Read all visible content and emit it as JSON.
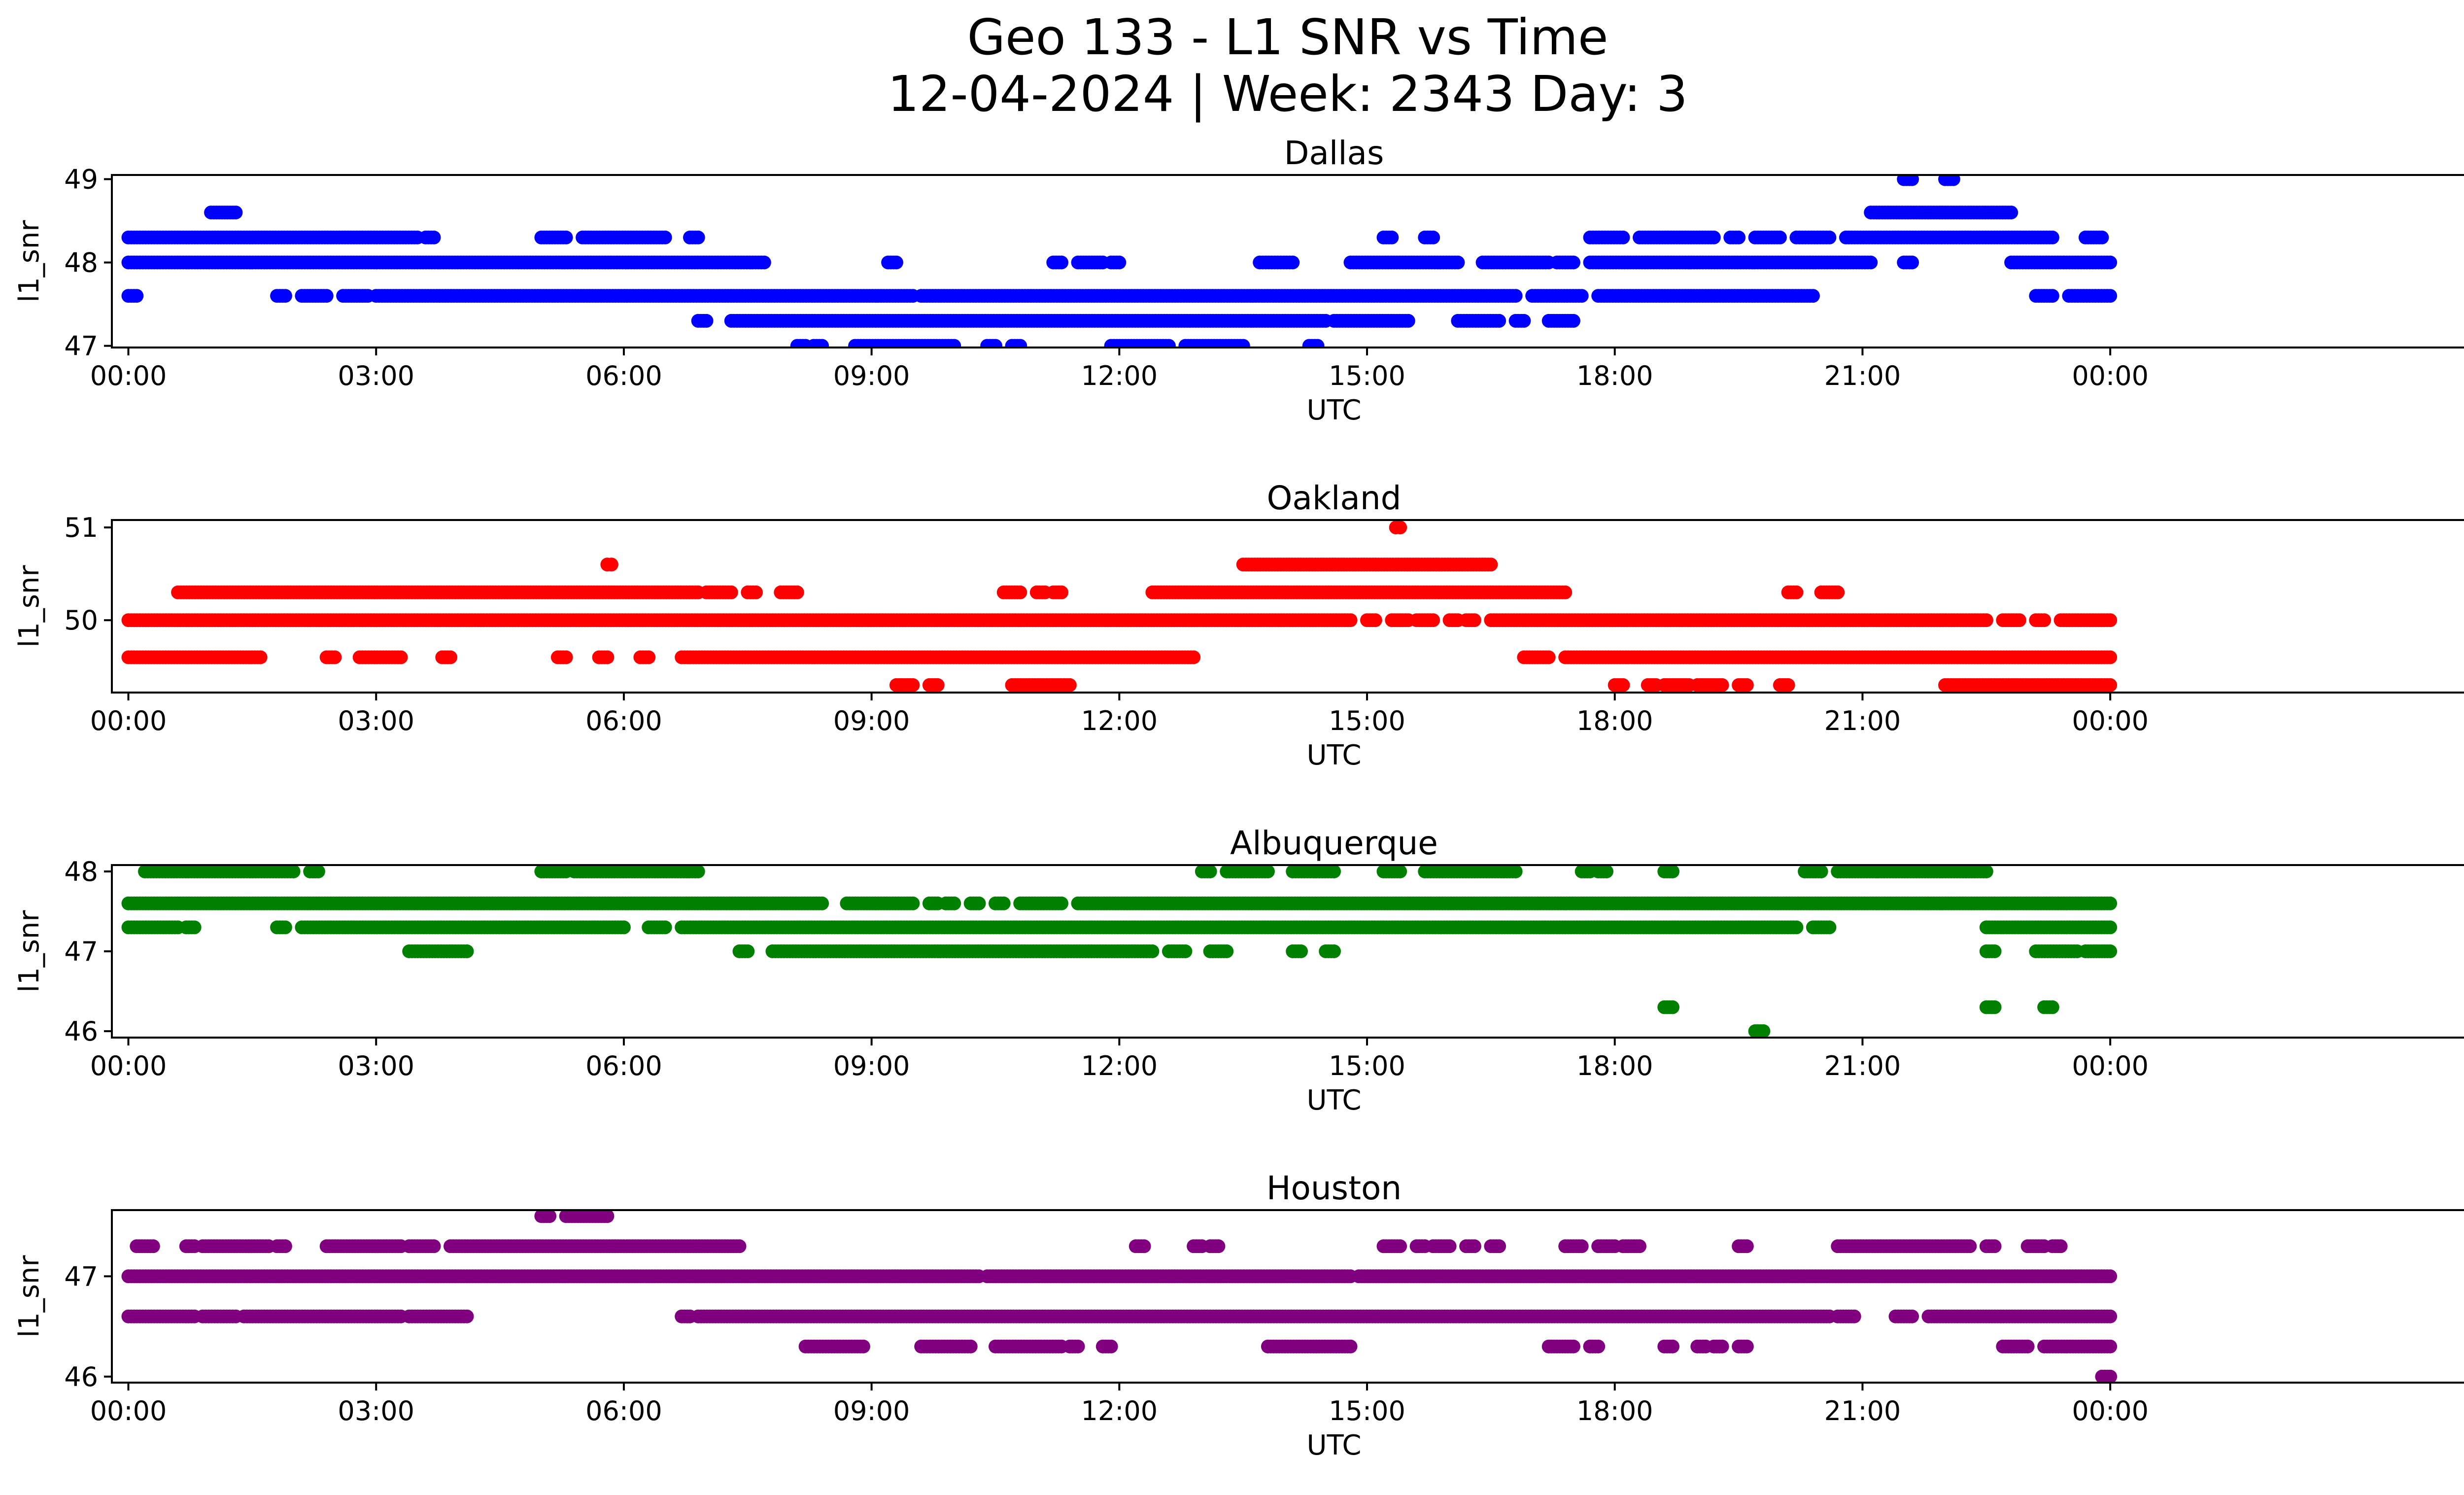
{
  "figure": {
    "title_line1": "Geo 133 - L1 SNR vs Time",
    "title_line2": "12-04-2024 | Week: 2343 Day: 3"
  },
  "chart_data": [
    {
      "type": "scatter",
      "title": "Dallas",
      "xlabel": "UTC",
      "ylabel": "l1_snr",
      "color": "#0000ff",
      "xlim": [
        -0.2,
        29.4
      ],
      "ylim": [
        46.98,
        49.05
      ],
      "xticks": [
        0,
        3,
        6,
        9,
        12,
        15,
        18,
        21,
        24
      ],
      "xtick_labels": [
        "00:00",
        "03:00",
        "06:00",
        "09:00",
        "12:00",
        "15:00",
        "18:00",
        "21:00",
        "00:00"
      ],
      "yticks": [
        47,
        48,
        49
      ],
      "ytick_labels": [
        "47",
        "48",
        "49"
      ],
      "levels": [
        {
          "y": 48.6,
          "ranges": [
            [
              1.0,
              1.3
            ]
          ]
        },
        {
          "y": 49.0,
          "ranges": [
            [
              21.5,
              21.6
            ],
            [
              22.0,
              22.1
            ]
          ]
        },
        {
          "y": 48.6,
          "ranges": [
            [
              21.1,
              22.8
            ]
          ]
        },
        {
          "y": 48.3,
          "ranges": [
            [
              0.0,
              3.5
            ],
            [
              3.6,
              3.7
            ],
            [
              5.0,
              5.3
            ],
            [
              5.5,
              6.5
            ],
            [
              6.8,
              6.9
            ],
            [
              15.2,
              15.3
            ],
            [
              15.7,
              15.8
            ],
            [
              17.7,
              18.1
            ],
            [
              18.3,
              19.2
            ],
            [
              19.4,
              19.5
            ],
            [
              19.7,
              20.0
            ],
            [
              20.2,
              20.6
            ],
            [
              20.8,
              23.3
            ],
            [
              23.7,
              23.9
            ]
          ]
        },
        {
          "y": 48.0,
          "ranges": [
            [
              0.0,
              7.7
            ],
            [
              9.2,
              9.3
            ],
            [
              11.2,
              11.3
            ],
            [
              11.5,
              11.8
            ],
            [
              11.9,
              12.0
            ],
            [
              13.7,
              14.1
            ],
            [
              14.8,
              16.1
            ],
            [
              16.4,
              17.2
            ],
            [
              17.3,
              17.5
            ],
            [
              17.7,
              21.1
            ],
            [
              21.5,
              21.6
            ],
            [
              22.8,
              24.0
            ]
          ]
        },
        {
          "y": 47.6,
          "ranges": [
            [
              0.0,
              0.1
            ],
            [
              1.8,
              1.9
            ],
            [
              2.1,
              2.4
            ],
            [
              2.6,
              2.9
            ],
            [
              3.0,
              9.5
            ],
            [
              9.6,
              16.8
            ],
            [
              17.0,
              17.6
            ],
            [
              17.8,
              20.4
            ],
            [
              23.1,
              23.3
            ],
            [
              23.5,
              24.0
            ]
          ]
        },
        {
          "y": 47.3,
          "ranges": [
            [
              6.9,
              7.0
            ],
            [
              7.3,
              14.5
            ],
            [
              14.6,
              15.5
            ],
            [
              16.1,
              16.6
            ],
            [
              16.8,
              16.9
            ],
            [
              17.2,
              17.5
            ]
          ]
        },
        {
          "y": 47.0,
          "ranges": [
            [
              8.1,
              8.2
            ],
            [
              8.3,
              8.4
            ],
            [
              8.8,
              10.0
            ],
            [
              10.4,
              10.5
            ],
            [
              10.7,
              10.8
            ],
            [
              11.9,
              12.6
            ],
            [
              12.8,
              13.5
            ],
            [
              14.3,
              14.4
            ]
          ]
        }
      ]
    },
    {
      "type": "scatter",
      "title": "Oakland",
      "xlabel": "UTC",
      "ylabel": "l1_snr",
      "color": "#ff0000",
      "xlim": [
        -0.2,
        29.4
      ],
      "ylim": [
        49.22,
        51.08
      ],
      "xticks": [
        0,
        3,
        6,
        9,
        12,
        15,
        18,
        21,
        24
      ],
      "xtick_labels": [
        "00:00",
        "03:00",
        "06:00",
        "09:00",
        "12:00",
        "15:00",
        "18:00",
        "21:00",
        "00:00"
      ],
      "yticks": [
        50,
        51
      ],
      "ytick_labels": [
        "50",
        "51"
      ],
      "levels": [
        {
          "y": 51.0,
          "ranges": [
            [
              15.35,
              15.4
            ]
          ]
        },
        {
          "y": 50.6,
          "ranges": [
            [
              5.8,
              5.85
            ],
            [
              13.5,
              16.5
            ]
          ]
        },
        {
          "y": 50.3,
          "ranges": [
            [
              0.6,
              6.9
            ],
            [
              7.0,
              7.3
            ],
            [
              7.5,
              7.6
            ],
            [
              7.9,
              8.1
            ],
            [
              10.6,
              10.8
            ],
            [
              11.0,
              11.1
            ],
            [
              11.2,
              11.3
            ],
            [
              12.4,
              17.4
            ],
            [
              20.1,
              20.2
            ],
            [
              20.5,
              20.7
            ]
          ]
        },
        {
          "y": 50.0,
          "ranges": [
            [
              0.0,
              14.8
            ],
            [
              15.0,
              15.1
            ],
            [
              15.3,
              15.5
            ],
            [
              15.6,
              15.8
            ],
            [
              16.0,
              16.1
            ],
            [
              16.2,
              16.3
            ],
            [
              16.5,
              22.5
            ],
            [
              22.7,
              22.9
            ],
            [
              23.1,
              23.2
            ],
            [
              23.4,
              24.0
            ]
          ]
        },
        {
          "y": 49.6,
          "ranges": [
            [
              0.0,
              1.6
            ],
            [
              2.4,
              2.5
            ],
            [
              2.8,
              3.3
            ],
            [
              3.8,
              3.9
            ],
            [
              5.2,
              5.3
            ],
            [
              5.7,
              5.8
            ],
            [
              6.2,
              6.3
            ],
            [
              6.7,
              12.9
            ],
            [
              16.9,
              17.2
            ],
            [
              17.4,
              24.0
            ]
          ]
        },
        {
          "y": 49.3,
          "ranges": [
            [
              9.3,
              9.5
            ],
            [
              9.7,
              9.8
            ],
            [
              10.7,
              11.4
            ],
            [
              18.0,
              18.1
            ],
            [
              18.4,
              18.5
            ],
            [
              18.6,
              18.9
            ],
            [
              19.0,
              19.3
            ],
            [
              19.5,
              19.6
            ],
            [
              20.0,
              20.1
            ],
            [
              22.0,
              24.0
            ]
          ]
        }
      ]
    },
    {
      "type": "scatter",
      "title": "Albuquerque",
      "xlabel": "UTC",
      "ylabel": "l1_snr",
      "color": "#008000",
      "xlim": [
        -0.2,
        29.4
      ],
      "ylim": [
        45.92,
        48.08
      ],
      "xticks": [
        0,
        3,
        6,
        9,
        12,
        15,
        18,
        21,
        24
      ],
      "xtick_labels": [
        "00:00",
        "03:00",
        "06:00",
        "09:00",
        "12:00",
        "15:00",
        "18:00",
        "21:00",
        "00:00"
      ],
      "yticks": [
        46,
        47,
        48
      ],
      "ytick_labels": [
        "46",
        "47",
        "48"
      ],
      "levels": [
        {
          "y": 48.0,
          "ranges": [
            [
              0.2,
              2.0
            ],
            [
              2.2,
              2.3
            ],
            [
              5.0,
              5.3
            ],
            [
              5.4,
              6.9
            ],
            [
              13.0,
              13.1
            ],
            [
              13.3,
              13.8
            ],
            [
              14.1,
              14.6
            ],
            [
              15.2,
              15.4
            ],
            [
              15.7,
              16.8
            ],
            [
              17.6,
              17.7
            ],
            [
              17.8,
              17.9
            ],
            [
              18.6,
              18.7
            ],
            [
              20.3,
              20.5
            ],
            [
              20.7,
              22.5
            ]
          ]
        },
        {
          "y": 47.6,
          "ranges": [
            [
              0.0,
              8.4
            ],
            [
              8.7,
              9.5
            ],
            [
              9.7,
              9.8
            ],
            [
              9.9,
              10.0
            ],
            [
              10.2,
              10.3
            ],
            [
              10.5,
              10.6
            ],
            [
              10.8,
              11.3
            ],
            [
              11.5,
              24.0
            ]
          ]
        },
        {
          "y": 47.3,
          "ranges": [
            [
              0.0,
              0.6
            ],
            [
              0.7,
              0.8
            ],
            [
              1.8,
              1.9
            ],
            [
              2.1,
              6.0
            ],
            [
              6.3,
              6.5
            ],
            [
              6.7,
              20.2
            ],
            [
              20.4,
              20.6
            ],
            [
              22.5,
              24.0
            ]
          ]
        },
        {
          "y": 47.0,
          "ranges": [
            [
              3.4,
              4.1
            ],
            [
              7.4,
              7.5
            ],
            [
              7.8,
              12.4
            ],
            [
              12.6,
              12.8
            ],
            [
              13.1,
              13.3
            ],
            [
              14.1,
              14.2
            ],
            [
              14.5,
              14.6
            ],
            [
              22.5,
              22.6
            ],
            [
              23.1,
              23.6
            ],
            [
              23.7,
              24.0
            ]
          ]
        },
        {
          "y": 46.3,
          "ranges": [
            [
              18.6,
              18.7
            ],
            [
              22.5,
              22.6
            ],
            [
              23.2,
              23.3
            ]
          ]
        },
        {
          "y": 46.0,
          "ranges": [
            [
              19.7,
              19.8
            ]
          ]
        }
      ]
    },
    {
      "type": "scatter",
      "title": "Houston",
      "xlabel": "UTC",
      "ylabel": "l1_snr",
      "color": "#800080",
      "xlim": [
        -0.2,
        29.4
      ],
      "ylim": [
        45.94,
        47.66
      ],
      "xticks": [
        0,
        3,
        6,
        9,
        12,
        15,
        18,
        21,
        24
      ],
      "xtick_labels": [
        "00:00",
        "03:00",
        "06:00",
        "09:00",
        "12:00",
        "15:00",
        "18:00",
        "21:00",
        "00:00"
      ],
      "yticks": [
        46,
        47
      ],
      "ytick_labels": [
        "46",
        "47"
      ],
      "levels": [
        {
          "y": 47.6,
          "ranges": [
            [
              5.0,
              5.1
            ],
            [
              5.3,
              5.8
            ]
          ]
        },
        {
          "y": 47.3,
          "ranges": [
            [
              0.1,
              0.3
            ],
            [
              0.7,
              0.8
            ],
            [
              0.9,
              1.7
            ],
            [
              1.8,
              1.9
            ],
            [
              2.4,
              3.3
            ],
            [
              3.4,
              3.7
            ],
            [
              3.9,
              7.4
            ],
            [
              12.2,
              12.3
            ],
            [
              12.9,
              13.0
            ],
            [
              13.1,
              13.2
            ],
            [
              15.2,
              15.4
            ],
            [
              15.6,
              15.7
            ],
            [
              15.8,
              16.0
            ],
            [
              16.2,
              16.3
            ],
            [
              16.5,
              16.6
            ],
            [
              17.4,
              17.6
            ],
            [
              17.8,
              18.0
            ],
            [
              18.1,
              18.3
            ],
            [
              19.5,
              19.6
            ],
            [
              20.7,
              22.3
            ],
            [
              22.5,
              22.6
            ],
            [
              23.0,
              23.2
            ],
            [
              23.3,
              23.4
            ]
          ]
        },
        {
          "y": 47.0,
          "ranges": [
            [
              0.0,
              10.3
            ],
            [
              10.4,
              14.8
            ],
            [
              14.9,
              24.0
            ]
          ]
        },
        {
          "y": 46.6,
          "ranges": [
            [
              0.0,
              0.8
            ],
            [
              0.9,
              1.3
            ],
            [
              1.4,
              3.3
            ],
            [
              3.4,
              4.1
            ],
            [
              6.7,
              6.8
            ],
            [
              6.9,
              20.6
            ],
            [
              20.7,
              20.9
            ],
            [
              21.4,
              21.6
            ],
            [
              21.8,
              24.0
            ]
          ]
        },
        {
          "y": 46.3,
          "ranges": [
            [
              8.2,
              8.9
            ],
            [
              9.6,
              10.2
            ],
            [
              10.5,
              11.3
            ],
            [
              11.4,
              11.5
            ],
            [
              11.8,
              11.9
            ],
            [
              13.8,
              14.8
            ],
            [
              17.2,
              17.5
            ],
            [
              17.7,
              17.8
            ],
            [
              18.6,
              18.7
            ],
            [
              19.0,
              19.1
            ],
            [
              19.2,
              19.3
            ],
            [
              19.5,
              19.6
            ],
            [
              22.7,
              23.0
            ],
            [
              23.2,
              24.0
            ]
          ]
        },
        {
          "y": 46.0,
          "ranges": [
            [
              23.9,
              24.0
            ]
          ]
        }
      ]
    }
  ]
}
